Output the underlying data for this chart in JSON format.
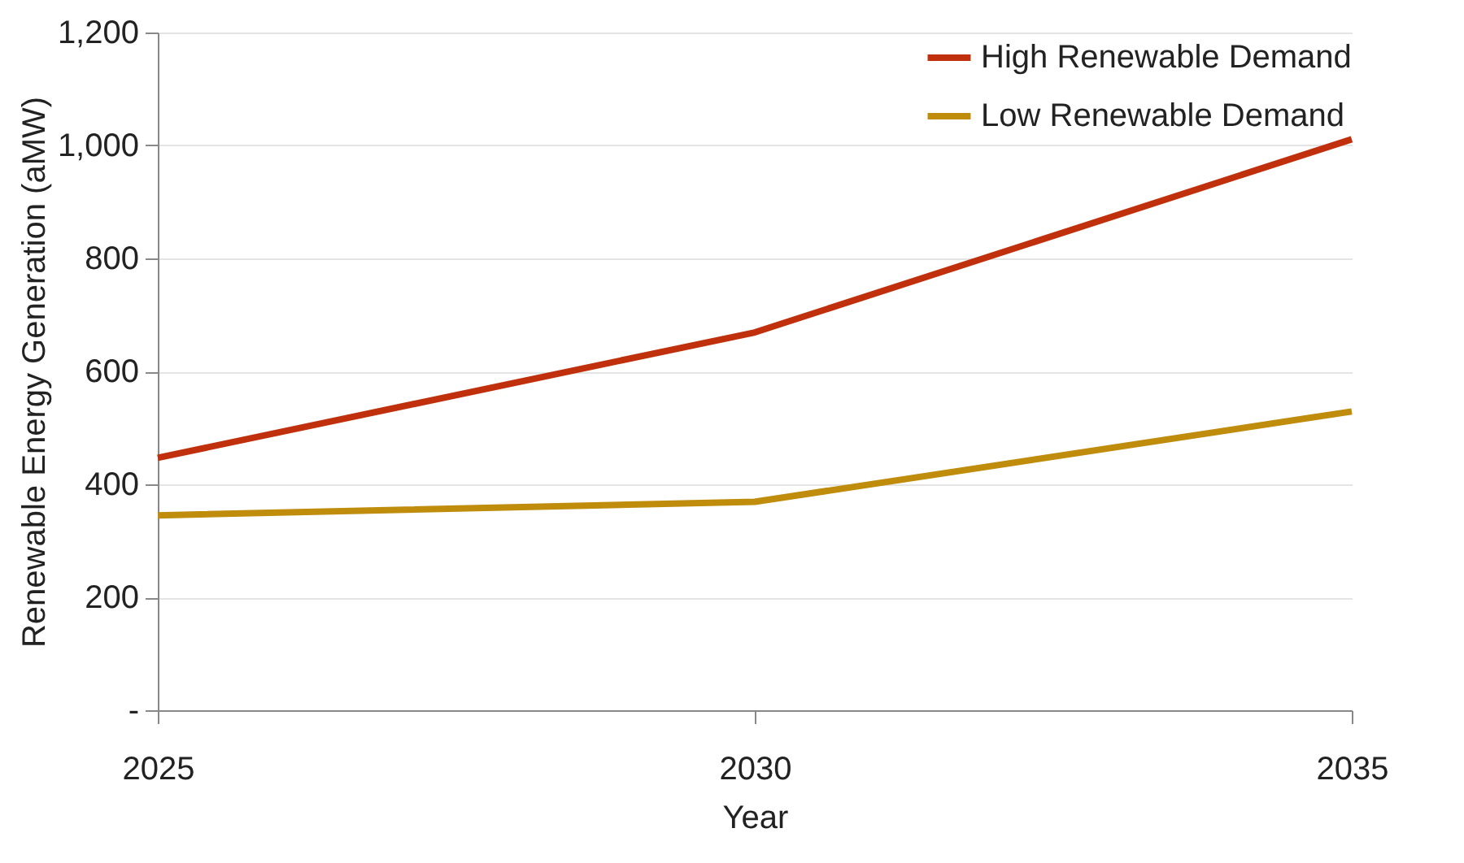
{
  "chart_data": {
    "type": "line",
    "xlabel": "Year",
    "ylabel": "Renewable Energy Generation (aMW)",
    "x": [
      2025,
      2030,
      2035
    ],
    "series": [
      {
        "name": "High Renewable Demand",
        "color": "#c0300c",
        "values": [
          447,
          669,
          1011
        ]
      },
      {
        "name": "Low Renewable Demand",
        "color": "#bf8c0c",
        "values": [
          345,
          369,
          529
        ]
      }
    ],
    "xlim": [
      2025,
      2035
    ],
    "xticks": [
      2025,
      2030,
      2035
    ],
    "ylim": [
      0,
      1200
    ],
    "yticks": [
      {
        "value": 0,
        "label": "-"
      },
      {
        "value": 200,
        "label": "200"
      },
      {
        "value": 400,
        "label": "400"
      },
      {
        "value": 600,
        "label": "600"
      },
      {
        "value": 800,
        "label": "800"
      },
      {
        "value": 1000,
        "label": "1,000"
      },
      {
        "value": 1200,
        "label": "1,200"
      }
    ],
    "grid": "y",
    "legend": "top right",
    "marker": "none",
    "line_style": "solid"
  }
}
